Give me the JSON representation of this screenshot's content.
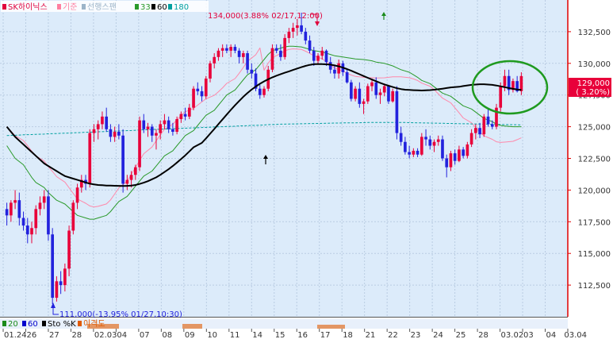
{
  "legend_top": [
    {
      "label": "SK하이닉스",
      "color": "#e0003c"
    },
    {
      "label": "기준",
      "color": "#ff7fa0"
    },
    {
      "label": "선행스팬",
      "color": "#9cb4c8"
    },
    {
      "label": "33",
      "color": "#2a9a2a"
    },
    {
      "label": "60",
      "color": "#000000"
    },
    {
      "label": "180",
      "color": "#00a0a0"
    }
  ],
  "legend_bottom": [
    {
      "label": "20",
      "color": "#1a8a1a"
    },
    {
      "label": "60",
      "color": "#0000cc"
    },
    {
      "label": "Sto %K",
      "color": "#000000"
    },
    {
      "label": "이격도",
      "color": "#e05a00"
    }
  ],
  "annotations": {
    "high": "134,000(3.88% 02/17,12:00)",
    "low": "111,000(-13.95% 01/27,10:30)"
  },
  "price_badge": {
    "price": "129,000",
    "change": "( 3.20%)"
  },
  "colors": {
    "up": "#e8003a",
    "down": "#2222dd",
    "bg": "#dcebfa",
    "ma60": "#000000",
    "ma33": "#2a9a2a",
    "ma180": "#00a0a0",
    "kijun": "#ff88aa",
    "span": "#9cc0e0",
    "circle": "#1f9a1f"
  },
  "chart_data": {
    "type": "candlestick",
    "y_range": [
      110000,
      135000
    ],
    "y_ticks": [
      "132,500",
      "130,000",
      "127,500",
      "125,000",
      "122,500",
      "120,000",
      "117,500",
      "115,000",
      "112,500"
    ],
    "x_labels": [
      "01.24",
      "26",
      "27",
      "28",
      "02.03",
      "04",
      "07",
      "08",
      "09",
      "10",
      "11",
      "14",
      "15",
      "16",
      "17",
      "18",
      "21",
      "22",
      "23",
      "24",
      "25",
      "28",
      "03.02",
      "03",
      "04",
      "03.04"
    ],
    "candles": [
      [
        118500,
        119000,
        117200,
        118000
      ],
      [
        118000,
        119200,
        117500,
        119000
      ],
      [
        119000,
        120000,
        118500,
        119200
      ],
      [
        119200,
        119800,
        117200,
        117800
      ],
      [
        117800,
        118300,
        116800,
        117200
      ],
      [
        117200,
        117800,
        115800,
        116500
      ],
      [
        116500,
        117500,
        115800,
        117000
      ],
      [
        117000,
        118800,
        116500,
        118500
      ],
      [
        118500,
        119500,
        118000,
        119000
      ],
      [
        119000,
        120000,
        118500,
        119500
      ],
      [
        119500,
        120000,
        116000,
        116500
      ],
      [
        116500,
        117000,
        111000,
        111500
      ],
      [
        111500,
        113200,
        111200,
        112800
      ],
      [
        112800,
        113600,
        111800,
        112500
      ],
      [
        112500,
        114200,
        112000,
        113800
      ],
      [
        113800,
        117200,
        113200,
        116800
      ],
      [
        116800,
        119200,
        116500,
        119000
      ],
      [
        119000,
        120500,
        118500,
        120200
      ],
      [
        120200,
        121200,
        119800,
        120800
      ],
      [
        120800,
        121200,
        120000,
        120500
      ],
      [
        120500,
        124800,
        120200,
        124500
      ],
      [
        124500,
        125200,
        123800,
        124800
      ],
      [
        124800,
        125500,
        124000,
        125200
      ],
      [
        125200,
        126200,
        124800,
        125800
      ],
      [
        125800,
        126500,
        124600,
        124800
      ],
      [
        124800,
        125200,
        123800,
        124200
      ],
      [
        124200,
        125000,
        123800,
        124600
      ],
      [
        124600,
        125200,
        124000,
        124300
      ],
      [
        124300,
        124800,
        119800,
        120500
      ],
      [
        120500,
        121200,
        120000,
        120800
      ],
      [
        120800,
        121500,
        120200,
        121200
      ],
      [
        121200,
        122000,
        120800,
        121800
      ],
      [
        121800,
        125800,
        121500,
        125500
      ],
      [
        125500,
        126000,
        124500,
        124800
      ],
      [
        124800,
        125300,
        124200,
        125000
      ],
      [
        125000,
        125200,
        123800,
        124300
      ],
      [
        124300,
        124800,
        123200,
        124500
      ],
      [
        124500,
        125500,
        124000,
        125200
      ],
      [
        125200,
        126000,
        124800,
        125500
      ],
      [
        125500,
        125800,
        124500,
        124800
      ],
      [
        124800,
        125300,
        124300,
        124600
      ],
      [
        124600,
        125800,
        124400,
        125600
      ],
      [
        125600,
        126200,
        125300,
        126000
      ],
      [
        126000,
        126500,
        125500,
        125800
      ],
      [
        125800,
        126800,
        125600,
        126500
      ],
      [
        126500,
        128200,
        126300,
        128000
      ],
      [
        128000,
        128500,
        127500,
        127800
      ],
      [
        127800,
        128200,
        127000,
        127400
      ],
      [
        127400,
        129000,
        127200,
        128800
      ],
      [
        128800,
        130200,
        128500,
        130000
      ],
      [
        130000,
        130800,
        129600,
        130500
      ],
      [
        130500,
        131200,
        130200,
        131000
      ],
      [
        131000,
        131500,
        130500,
        131200
      ],
      [
        131200,
        131500,
        130800,
        131000
      ],
      [
        131000,
        131500,
        130500,
        131300
      ],
      [
        131300,
        131500,
        130800,
        131000
      ],
      [
        131000,
        131200,
        130000,
        130500
      ],
      [
        130500,
        131000,
        130000,
        130800
      ],
      [
        130800,
        131000,
        129200,
        129500
      ],
      [
        129500,
        130000,
        128800,
        129200
      ],
      [
        129200,
        129600,
        127800,
        128000
      ],
      [
        128000,
        128300,
        127200,
        127500
      ],
      [
        127500,
        128200,
        127300,
        128000
      ],
      [
        128000,
        129800,
        127800,
        129500
      ],
      [
        129500,
        131500,
        129300,
        131200
      ],
      [
        131200,
        131500,
        130800,
        131000
      ],
      [
        131000,
        131500,
        130200,
        130500
      ],
      [
        130500,
        132300,
        130300,
        132000
      ],
      [
        132000,
        132800,
        131600,
        132500
      ],
      [
        132500,
        133200,
        132000,
        132800
      ],
      [
        132800,
        133500,
        132200,
        133000
      ],
      [
        133000,
        134000,
        132300,
        132500
      ],
      [
        132500,
        132800,
        131500,
        131800
      ],
      [
        131800,
        132200,
        130800,
        131000
      ],
      [
        131000,
        131300,
        129800,
        130200
      ],
      [
        130200,
        130800,
        130000,
        130600
      ],
      [
        130600,
        131300,
        130300,
        131000
      ],
      [
        131000,
        131100,
        129800,
        130100
      ],
      [
        130100,
        130500,
        129200,
        129500
      ],
      [
        129500,
        129900,
        128800,
        129200
      ],
      [
        129200,
        130300,
        128800,
        130000
      ],
      [
        130000,
        130200,
        129000,
        129300
      ],
      [
        129300,
        129500,
        128400,
        128500
      ],
      [
        128500,
        128700,
        127000,
        127200
      ],
      [
        127200,
        128200,
        127000,
        128000
      ],
      [
        128000,
        128500,
        126500,
        126800
      ],
      [
        126800,
        127200,
        126000,
        127000
      ],
      [
        127000,
        128400,
        126800,
        128200
      ],
      [
        128200,
        128800,
        127800,
        128500
      ],
      [
        128500,
        128900,
        127200,
        127500
      ],
      [
        127500,
        128000,
        126800,
        127700
      ],
      [
        127700,
        128400,
        127400,
        128200
      ],
      [
        128200,
        128300,
        126800,
        127000
      ],
      [
        127000,
        128000,
        126900,
        127800
      ],
      [
        127800,
        128200,
        124000,
        124500
      ],
      [
        124500,
        125000,
        123500,
        123800
      ],
      [
        123800,
        124200,
        122800,
        123000
      ],
      [
        123000,
        123500,
        122500,
        122800
      ],
      [
        122800,
        123300,
        122600,
        123100
      ],
      [
        123100,
        123300,
        122600,
        122800
      ],
      [
        122800,
        124500,
        122700,
        124200
      ],
      [
        124200,
        124800,
        123500,
        124000
      ],
      [
        124000,
        124300,
        123200,
        123500
      ],
      [
        123500,
        124000,
        123000,
        123800
      ],
      [
        123800,
        124300,
        123500,
        124000
      ],
      [
        124000,
        124300,
        122300,
        122500
      ],
      [
        122500,
        122800,
        121000,
        121800
      ],
      [
        121800,
        123100,
        121500,
        122900
      ],
      [
        122900,
        123200,
        122000,
        122300
      ],
      [
        122300,
        123500,
        122200,
        123200
      ],
      [
        123200,
        123400,
        122500,
        122700
      ],
      [
        122700,
        123800,
        122500,
        123600
      ],
      [
        123600,
        124800,
        123400,
        124500
      ],
      [
        124500,
        125200,
        124000,
        124900
      ],
      [
        124900,
        125300,
        124100,
        124400
      ],
      [
        124400,
        126000,
        124200,
        125800
      ],
      [
        125800,
        126500,
        125000,
        125200
      ],
      [
        125200,
        125500,
        124800,
        125000
      ],
      [
        125000,
        126800,
        124800,
        126500
      ],
      [
        126500,
        128500,
        126200,
        128200
      ],
      [
        128200,
        129500,
        127800,
        129000
      ],
      [
        129000,
        129500,
        127500,
        127900
      ],
      [
        127900,
        128800,
        127700,
        128600
      ],
      [
        128600,
        129000,
        127700,
        127800
      ],
      [
        127800,
        129300,
        127500,
        129000
      ]
    ],
    "ma60": [
      125000,
      124600,
      124200,
      123900,
      123600,
      123300,
      123000,
      122700,
      122400,
      122100,
      121900,
      121700,
      121500,
      121300,
      121100,
      120900,
      120800,
      120700,
      120600,
      120500,
      120450,
      120400,
      120380,
      120360,
      120350,
      120340,
      120330,
      120320,
      120330,
      120350,
      120400,
      120480,
      120580,
      120700,
      120850,
      121000,
      121200,
      121420,
      121650,
      121900,
      122170,
      122450,
      122740,
      123050,
      123380,
      123720,
      124080,
      124450,
      124820,
      125200,
      125580,
      125960,
      126330,
      126690,
      127030,
      127360,
      127660,
      127930,
      128170,
      128390,
      128580,
      128750,
      128900,
      129030,
      129150,
      129260,
      129370,
      129480,
      129590,
      129700,
      129800,
      129880,
      129930,
      129950,
      129940,
      129900,
      129840,
      129760,
      129660,
      129550,
      129420,
      129280,
      129140,
      129000,
      128860,
      128720,
      128590,
      128460,
      128340,
      128230,
      128130,
      128040,
      127970,
      127920,
      127900,
      127880,
      127870,
      127860,
      127870,
      127890,
      127920,
      127960,
      128000,
      128050,
      128100,
      128150,
      128210,
      128260,
      128300,
      128330,
      128350,
      128350,
      128330,
      128300,
      128250,
      128190,
      128120,
      128050,
      127990,
      127940,
      127900
    ],
    "ma33": [
      123500,
      123000,
      122500,
      122000,
      121500,
      121000,
      120600,
      120200,
      119800,
      119500,
      119200,
      118900,
      118600,
      118300,
      118000,
      117800,
      117700,
      117700,
      117800,
      118000,
      118300,
      118700,
      119100,
      119500,
      119900,
      120300,
      120700,
      121100,
      121500,
      121900,
      122300,
      122700,
      123100,
      123500,
      123900,
      124300,
      124700,
      125100,
      125500,
      125900,
      126300,
      126700,
      127100,
      127500,
      127900,
      128300,
      128700,
      129100,
      129500,
      129900,
      130300,
      130700,
      131000,
      131200,
      131300,
      131350,
      131350,
      131300,
      131200,
      131100,
      131000,
      130900,
      130800,
      130700,
      130600,
      130500,
      130450,
      130400,
      130350,
      130300,
      130250,
      130200,
      130100,
      130000,
      129900,
      129800,
      129650,
      129500,
      129300,
      129100,
      128900,
      128650,
      128400,
      128150,
      127900,
      127650,
      127400,
      127150,
      126900,
      126650,
      126400,
      126150,
      125900,
      125650,
      125400,
      125200,
      125100,
      125050,
      125000,
      125000,
      125000
    ],
    "ma180": [
      124300,
      124320,
      124340,
      124360,
      124380,
      124400,
      124420,
      124440,
      124460,
      124480,
      124500,
      124520,
      124540,
      124560,
      124580,
      124600,
      124620,
      124640,
      124660,
      124680,
      124700,
      124720,
      124740,
      124760,
      124780,
      124800,
      124820,
      124840,
      124860,
      124880,
      124900,
      124920,
      124940,
      124960,
      124980,
      125000,
      125020,
      125040,
      125060,
      125080,
      125100,
      125120,
      125140,
      125160,
      125180,
      125200,
      125210,
      125220,
      125230,
      125240,
      125250,
      125260,
      125270,
      125280,
      125290,
      125300,
      125300,
      125310,
      125320,
      125330,
      125340,
      125340,
      125340,
      125340,
      125340,
      125330,
      125320,
      125310,
      125300,
      125290,
      125280,
      125270,
      125260,
      125250,
      125240,
      125230,
      125220,
      125210,
      125200,
      125190,
      125180,
      125170,
      125160,
      125150,
      125140
    ]
  }
}
